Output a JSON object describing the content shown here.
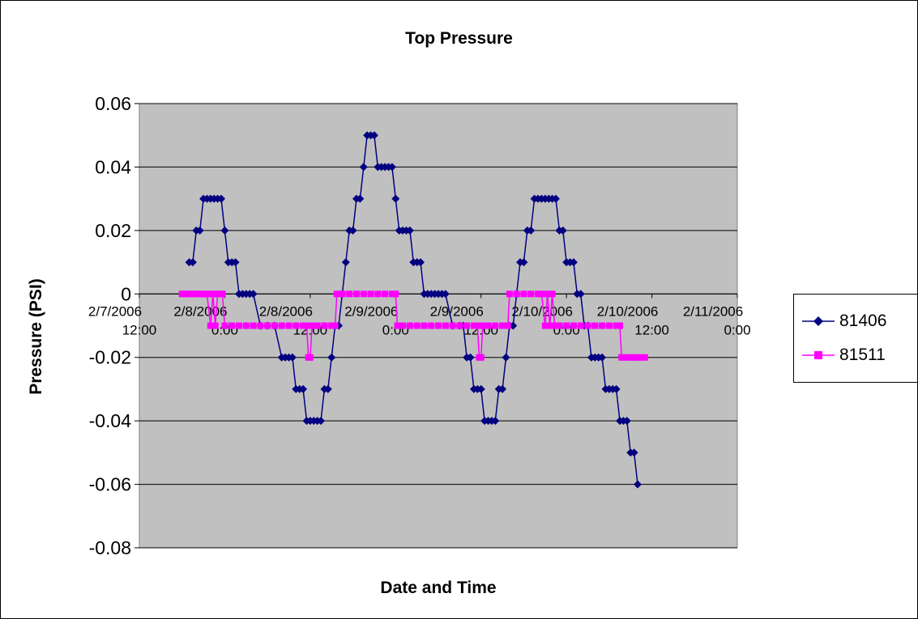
{
  "chart_data": {
    "type": "line",
    "title": "Top Pressure",
    "xlabel": "Date and Time",
    "ylabel": "Pressure (PSI)",
    "xlim": [
      "2/7/2006 12:00",
      "2/11/2006 0:00"
    ],
    "ylim": [
      -0.08,
      0.06
    ],
    "y_ticks": [
      "0.06",
      "0.04",
      "0.02",
      "0",
      "-0.02",
      "-0.04",
      "-0.06",
      "-0.08"
    ],
    "x_ticks": [
      {
        "date": "2/7/2006",
        "time": "12:00"
      },
      {
        "date": "2/8/2006",
        "time": "0:00"
      },
      {
        "date": "2/8/2006",
        "time": "12:00"
      },
      {
        "date": "2/9/2006",
        "time": "0:00"
      },
      {
        "date": "2/9/2006",
        "time": "12:00"
      },
      {
        "date": "2/10/2006",
        "time": "0:00"
      },
      {
        "date": "2/10/2006",
        "time": "12:00"
      },
      {
        "date": "2/11/2006",
        "time": "0:00"
      }
    ],
    "grid": {
      "horizontal": true,
      "vertical": false
    },
    "legend_position": "right",
    "plot_background": "#c0c0c0",
    "series": [
      {
        "name": "81406",
        "color": "#000080",
        "marker": "diamond",
        "points": [
          [
            "2/7/2006 19:00",
            0.01
          ],
          [
            "2/7/2006 19:30",
            0.01
          ],
          [
            "2/7/2006 20:00",
            0.02
          ],
          [
            "2/7/2006 20:30",
            0.02
          ],
          [
            "2/7/2006 21:00",
            0.03
          ],
          [
            "2/7/2006 21:30",
            0.03
          ],
          [
            "2/7/2006 22:00",
            0.03
          ],
          [
            "2/7/2006 22:30",
            0.03
          ],
          [
            "2/7/2006 23:00",
            0.03
          ],
          [
            "2/7/2006 23:30",
            0.03
          ],
          [
            "2/8/2006 0:00",
            0.02
          ],
          [
            "2/8/2006 0:30",
            0.01
          ],
          [
            "2/8/2006 1:00",
            0.01
          ],
          [
            "2/8/2006 1:30",
            0.01
          ],
          [
            "2/8/2006 2:00",
            0.0
          ],
          [
            "2/8/2006 2:30",
            0.0
          ],
          [
            "2/8/2006 3:00",
            0.0
          ],
          [
            "2/8/2006 3:30",
            0.0
          ],
          [
            "2/8/2006 4:00",
            0.0
          ],
          [
            "2/8/2006 5:00",
            -0.01
          ],
          [
            "2/8/2006 6:00",
            -0.01
          ],
          [
            "2/8/2006 7:00",
            -0.01
          ],
          [
            "2/8/2006 8:00",
            -0.02
          ],
          [
            "2/8/2006 8:30",
            -0.02
          ],
          [
            "2/8/2006 9:00",
            -0.02
          ],
          [
            "2/8/2006 9:30",
            -0.02
          ],
          [
            "2/8/2006 10:00",
            -0.03
          ],
          [
            "2/8/2006 10:30",
            -0.03
          ],
          [
            "2/8/2006 11:00",
            -0.03
          ],
          [
            "2/8/2006 11:30",
            -0.04
          ],
          [
            "2/8/2006 12:00",
            -0.04
          ],
          [
            "2/8/2006 12:30",
            -0.04
          ],
          [
            "2/8/2006 13:00",
            -0.04
          ],
          [
            "2/8/2006 13:30",
            -0.04
          ],
          [
            "2/8/2006 14:00",
            -0.03
          ],
          [
            "2/8/2006 14:30",
            -0.03
          ],
          [
            "2/8/2006 15:00",
            -0.02
          ],
          [
            "2/8/2006 15:30",
            -0.01
          ],
          [
            "2/8/2006 16:00",
            -0.01
          ],
          [
            "2/8/2006 16:30",
            0.0
          ],
          [
            "2/8/2006 17:00",
            0.01
          ],
          [
            "2/8/2006 17:30",
            0.02
          ],
          [
            "2/8/2006 18:00",
            0.02
          ],
          [
            "2/8/2006 18:30",
            0.03
          ],
          [
            "2/8/2006 19:00",
            0.03
          ],
          [
            "2/8/2006 19:30",
            0.04
          ],
          [
            "2/8/2006 20:00",
            0.05
          ],
          [
            "2/8/2006 20:30",
            0.05
          ],
          [
            "2/8/2006 21:00",
            0.05
          ],
          [
            "2/8/2006 21:30",
            0.04
          ],
          [
            "2/8/2006 22:00",
            0.04
          ],
          [
            "2/8/2006 22:30",
            0.04
          ],
          [
            "2/8/2006 23:00",
            0.04
          ],
          [
            "2/8/2006 23:30",
            0.04
          ],
          [
            "2/9/2006 0:00",
            0.03
          ],
          [
            "2/9/2006 0:30",
            0.02
          ],
          [
            "2/9/2006 1:00",
            0.02
          ],
          [
            "2/9/2006 1:30",
            0.02
          ],
          [
            "2/9/2006 2:00",
            0.02
          ],
          [
            "2/9/2006 2:30",
            0.01
          ],
          [
            "2/9/2006 3:00",
            0.01
          ],
          [
            "2/9/2006 3:30",
            0.01
          ],
          [
            "2/9/2006 4:00",
            0.0
          ],
          [
            "2/9/2006 4:30",
            0.0
          ],
          [
            "2/9/2006 5:00",
            0.0
          ],
          [
            "2/9/2006 5:30",
            0.0
          ],
          [
            "2/9/2006 6:00",
            0.0
          ],
          [
            "2/9/2006 6:30",
            0.0
          ],
          [
            "2/9/2006 7:00",
            0.0
          ],
          [
            "2/9/2006 8:00",
            -0.01
          ],
          [
            "2/9/2006 9:00",
            -0.01
          ],
          [
            "2/9/2006 9:30",
            -0.01
          ],
          [
            "2/9/2006 10:00",
            -0.02
          ],
          [
            "2/9/2006 10:30",
            -0.02
          ],
          [
            "2/9/2006 11:00",
            -0.03
          ],
          [
            "2/9/2006 11:30",
            -0.03
          ],
          [
            "2/9/2006 12:00",
            -0.03
          ],
          [
            "2/9/2006 12:30",
            -0.04
          ],
          [
            "2/9/2006 13:00",
            -0.04
          ],
          [
            "2/9/2006 13:30",
            -0.04
          ],
          [
            "2/9/2006 14:00",
            -0.04
          ],
          [
            "2/9/2006 14:30",
            -0.03
          ],
          [
            "2/9/2006 15:00",
            -0.03
          ],
          [
            "2/9/2006 15:30",
            -0.02
          ],
          [
            "2/9/2006 16:00",
            -0.01
          ],
          [
            "2/9/2006 16:30",
            -0.01
          ],
          [
            "2/9/2006 17:00",
            0.0
          ],
          [
            "2/9/2006 17:30",
            0.01
          ],
          [
            "2/9/2006 18:00",
            0.01
          ],
          [
            "2/9/2006 18:30",
            0.02
          ],
          [
            "2/9/2006 19:00",
            0.02
          ],
          [
            "2/9/2006 19:30",
            0.03
          ],
          [
            "2/9/2006 20:00",
            0.03
          ],
          [
            "2/9/2006 20:30",
            0.03
          ],
          [
            "2/9/2006 21:00",
            0.03
          ],
          [
            "2/9/2006 21:30",
            0.03
          ],
          [
            "2/9/2006 22:00",
            0.03
          ],
          [
            "2/9/2006 22:30",
            0.03
          ],
          [
            "2/9/2006 23:00",
            0.02
          ],
          [
            "2/9/2006 23:30",
            0.02
          ],
          [
            "2/10/2006 0:00",
            0.01
          ],
          [
            "2/10/2006 0:30",
            0.01
          ],
          [
            "2/10/2006 1:00",
            0.01
          ],
          [
            "2/10/2006 1:30",
            0.0
          ],
          [
            "2/10/2006 2:00",
            0.0
          ],
          [
            "2/10/2006 2:30",
            -0.01
          ],
          [
            "2/10/2006 3:00",
            -0.01
          ],
          [
            "2/10/2006 3:30",
            -0.02
          ],
          [
            "2/10/2006 4:00",
            -0.02
          ],
          [
            "2/10/2006 4:30",
            -0.02
          ],
          [
            "2/10/2006 5:00",
            -0.02
          ],
          [
            "2/10/2006 5:30",
            -0.03
          ],
          [
            "2/10/2006 6:00",
            -0.03
          ],
          [
            "2/10/2006 6:30",
            -0.03
          ],
          [
            "2/10/2006 7:00",
            -0.03
          ],
          [
            "2/10/2006 7:30",
            -0.04
          ],
          [
            "2/10/2006 8:00",
            -0.04
          ],
          [
            "2/10/2006 8:30",
            -0.04
          ],
          [
            "2/10/2006 9:00",
            -0.05
          ],
          [
            "2/10/2006 9:30",
            -0.05
          ],
          [
            "2/10/2006 10:00",
            -0.06
          ]
        ]
      },
      {
        "name": "81511",
        "color": "#ff00ff",
        "marker": "square",
        "points": [
          [
            "2/7/2006 18:00",
            0.0
          ],
          [
            "2/7/2006 18:30",
            0.0
          ],
          [
            "2/7/2006 19:00",
            0.0
          ],
          [
            "2/7/2006 19:30",
            0.0
          ],
          [
            "2/7/2006 20:00",
            0.0
          ],
          [
            "2/7/2006 20:30",
            0.0
          ],
          [
            "2/7/2006 21:00",
            0.0
          ],
          [
            "2/7/2006 21:30",
            0.0
          ],
          [
            "2/7/2006 22:00",
            -0.01
          ],
          [
            "2/7/2006 22:20",
            0.0
          ],
          [
            "2/7/2006 22:40",
            -0.01
          ],
          [
            "2/7/2006 23:00",
            0.0
          ],
          [
            "2/7/2006 23:20",
            0.0
          ],
          [
            "2/7/2006 23:40",
            0.0
          ],
          [
            "2/8/2006 0:00",
            -0.01
          ],
          [
            "2/8/2006 1:00",
            -0.01
          ],
          [
            "2/8/2006 2:00",
            -0.01
          ],
          [
            "2/8/2006 3:00",
            -0.01
          ],
          [
            "2/8/2006 4:00",
            -0.01
          ],
          [
            "2/8/2006 5:00",
            -0.01
          ],
          [
            "2/8/2006 6:00",
            -0.01
          ],
          [
            "2/8/2006 7:00",
            -0.01
          ],
          [
            "2/8/2006 8:00",
            -0.01
          ],
          [
            "2/8/2006 9:00",
            -0.01
          ],
          [
            "2/8/2006 10:00",
            -0.01
          ],
          [
            "2/8/2006 11:00",
            -0.01
          ],
          [
            "2/8/2006 11:30",
            -0.01
          ],
          [
            "2/8/2006 11:45",
            -0.02
          ],
          [
            "2/8/2006 12:00",
            -0.02
          ],
          [
            "2/8/2006 12:15",
            -0.01
          ],
          [
            "2/8/2006 13:00",
            -0.01
          ],
          [
            "2/8/2006 14:00",
            -0.01
          ],
          [
            "2/8/2006 15:00",
            -0.01
          ],
          [
            "2/8/2006 15:30",
            -0.01
          ],
          [
            "2/8/2006 15:45",
            0.0
          ],
          [
            "2/8/2006 16:30",
            0.0
          ],
          [
            "2/8/2006 17:30",
            0.0
          ],
          [
            "2/8/2006 18:30",
            0.0
          ],
          [
            "2/8/2006 19:30",
            0.0
          ],
          [
            "2/8/2006 20:30",
            0.0
          ],
          [
            "2/8/2006 21:30",
            0.0
          ],
          [
            "2/8/2006 22:30",
            0.0
          ],
          [
            "2/8/2006 23:30",
            0.0
          ],
          [
            "2/9/2006 0:00",
            0.0
          ],
          [
            "2/9/2006 0:15",
            -0.01
          ],
          [
            "2/9/2006 1:00",
            -0.01
          ],
          [
            "2/9/2006 2:00",
            -0.01
          ],
          [
            "2/9/2006 3:00",
            -0.01
          ],
          [
            "2/9/2006 4:00",
            -0.01
          ],
          [
            "2/9/2006 5:00",
            -0.01
          ],
          [
            "2/9/2006 6:00",
            -0.01
          ],
          [
            "2/9/2006 7:00",
            -0.01
          ],
          [
            "2/9/2006 8:00",
            -0.01
          ],
          [
            "2/9/2006 9:00",
            -0.01
          ],
          [
            "2/9/2006 10:00",
            -0.01
          ],
          [
            "2/9/2006 11:00",
            -0.01
          ],
          [
            "2/9/2006 11:30",
            -0.01
          ],
          [
            "2/9/2006 11:45",
            -0.02
          ],
          [
            "2/9/2006 12:00",
            -0.02
          ],
          [
            "2/9/2006 12:15",
            -0.01
          ],
          [
            "2/9/2006 13:00",
            -0.01
          ],
          [
            "2/9/2006 14:00",
            -0.01
          ],
          [
            "2/9/2006 15:00",
            -0.01
          ],
          [
            "2/9/2006 15:45",
            -0.01
          ],
          [
            "2/9/2006 16:00",
            0.0
          ],
          [
            "2/9/2006 17:00",
            0.0
          ],
          [
            "2/9/2006 18:00",
            0.0
          ],
          [
            "2/9/2006 19:00",
            0.0
          ],
          [
            "2/9/2006 20:00",
            0.0
          ],
          [
            "2/9/2006 20:30",
            0.0
          ],
          [
            "2/9/2006 21:00",
            -0.01
          ],
          [
            "2/9/2006 21:20",
            0.0
          ],
          [
            "2/9/2006 21:40",
            -0.01
          ],
          [
            "2/9/2006 22:00",
            0.0
          ],
          [
            "2/9/2006 22:20",
            -0.01
          ],
          [
            "2/9/2006 23:00",
            -0.01
          ],
          [
            "2/10/2006 0:00",
            -0.01
          ],
          [
            "2/10/2006 1:00",
            -0.01
          ],
          [
            "2/10/2006 2:00",
            -0.01
          ],
          [
            "2/10/2006 3:00",
            -0.01
          ],
          [
            "2/10/2006 4:00",
            -0.01
          ],
          [
            "2/10/2006 5:00",
            -0.01
          ],
          [
            "2/10/2006 6:00",
            -0.01
          ],
          [
            "2/10/2006 7:00",
            -0.01
          ],
          [
            "2/10/2006 7:30",
            -0.01
          ],
          [
            "2/10/2006 7:45",
            -0.02
          ],
          [
            "2/10/2006 8:30",
            -0.02
          ],
          [
            "2/10/2006 9:00",
            -0.02
          ],
          [
            "2/10/2006 9:30",
            -0.02
          ],
          [
            "2/10/2006 10:00",
            -0.02
          ],
          [
            "2/10/2006 10:30",
            -0.02
          ],
          [
            "2/10/2006 11:00",
            -0.02
          ]
        ]
      }
    ]
  }
}
